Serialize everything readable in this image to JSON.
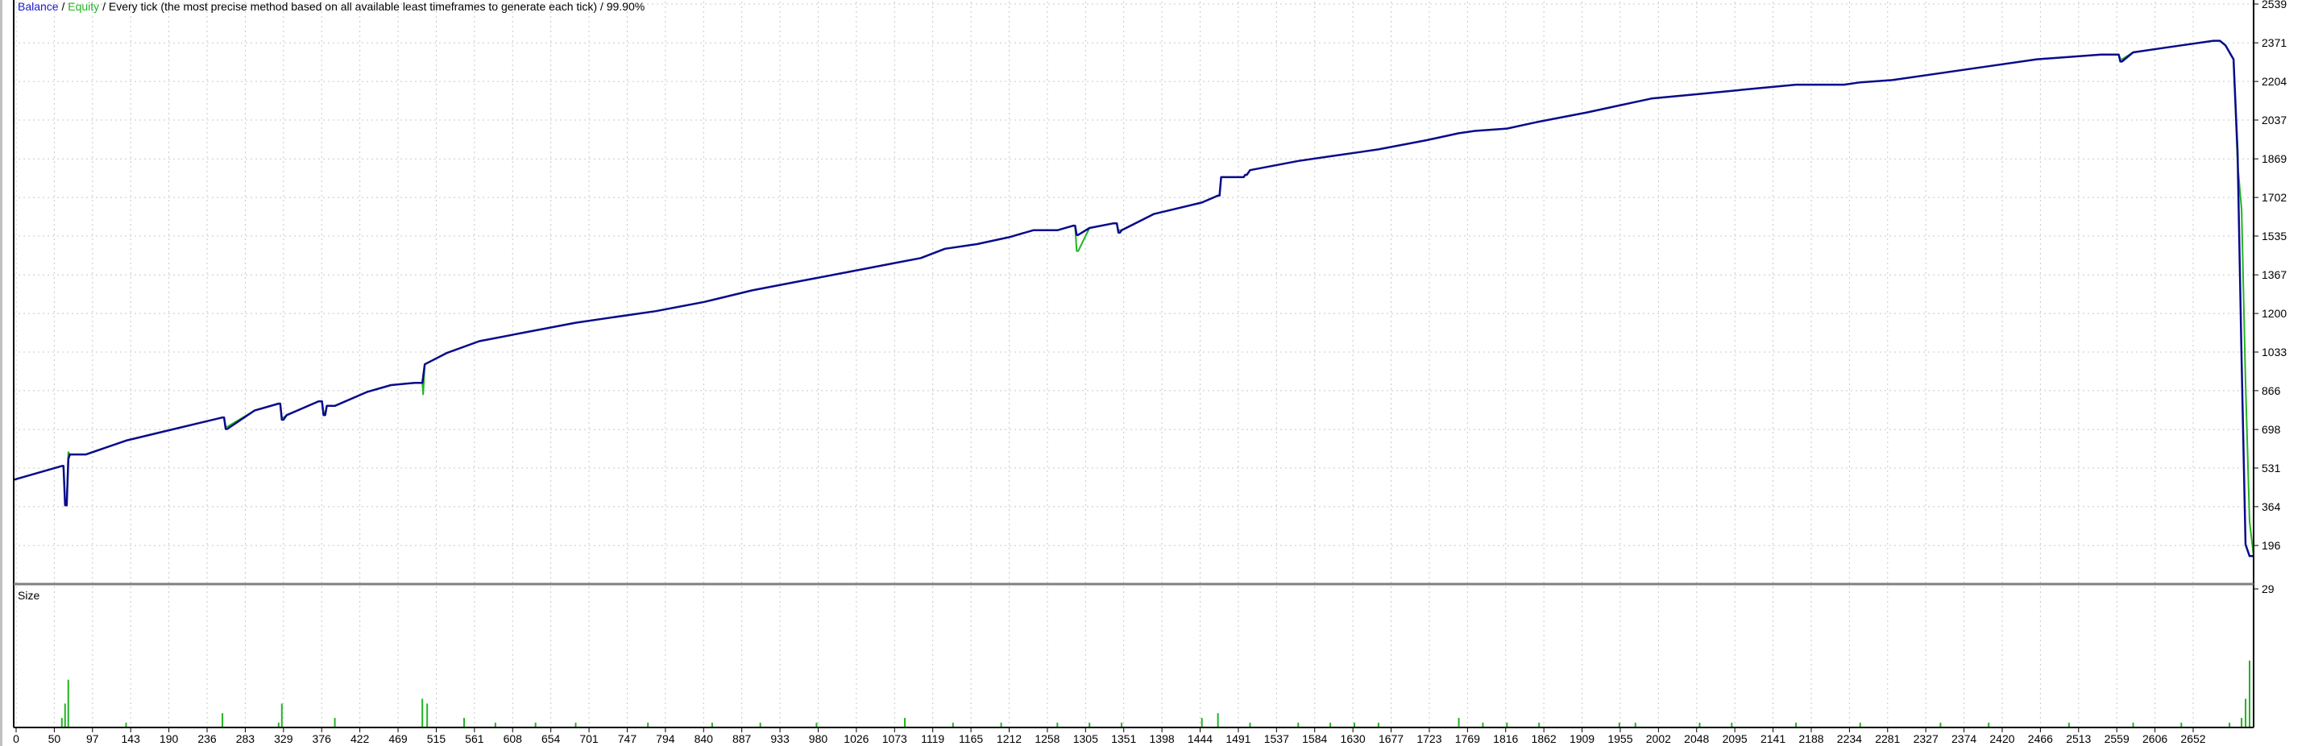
{
  "header": {
    "balance_label": "Balance",
    "sep1": " / ",
    "equity_label": "Equity",
    "sep2": " / ",
    "model_text": "Every tick (the most precise method based on all available least timeframes to generate each tick)",
    "sep3": " / ",
    "quality": "99.90%"
  },
  "colors": {
    "balance": "#0a0a8c",
    "equity": "#22b422",
    "size": "#22b422",
    "grid": "#c8c8c8",
    "axis": "#000000",
    "background": "#ffffff"
  },
  "chart_data": [
    {
      "type": "line",
      "title": "Balance / Equity",
      "subtitle": "Every tick (the most precise method based on all available least timeframes to generate each tick) / 99.90%",
      "xlabel": "",
      "ylabel": "",
      "x_ticks": [
        0,
        50,
        97,
        143,
        190,
        236,
        283,
        329,
        376,
        422,
        469,
        515,
        561,
        608,
        654,
        701,
        747,
        794,
        840,
        887,
        933,
        980,
        1026,
        1073,
        1119,
        1165,
        1212,
        1258,
        1305,
        1351,
        1398,
        1444,
        1491,
        1537,
        1584,
        1630,
        1677,
        1723,
        1769,
        1816,
        1862,
        1909,
        1955,
        2002,
        2048,
        2095,
        2141,
        2188,
        2234,
        2281,
        2327,
        2374,
        2420,
        2466,
        2513,
        2559,
        2606,
        2652
      ],
      "y_ticks": [
        196,
        364,
        531,
        698,
        866,
        1033,
        1200,
        1367,
        1535,
        1702,
        1869,
        2037,
        2204,
        2371,
        2539
      ],
      "xlim": [
        0,
        2790
      ],
      "ylim": [
        29,
        2539
      ],
      "grid": true,
      "series": [
        {
          "name": "Balance",
          "x": [
            0,
            60,
            62,
            64,
            66,
            68,
            70,
            90,
            140,
            200,
            260,
            262,
            264,
            266,
            300,
            330,
            332,
            334,
            336,
            340,
            380,
            384,
            386,
            388,
            390,
            400,
            440,
            470,
            500,
            509,
            512,
            540,
            580,
            640,
            700,
            740,
            800,
            860,
            920,
            980,
            1040,
            1100,
            1130,
            1160,
            1200,
            1240,
            1270,
            1300,
            1320,
            1322,
            1324,
            1326,
            1340,
            1370,
            1374,
            1376,
            1378,
            1380,
            1420,
            1480,
            1500,
            1502,
            1504,
            1530,
            1532,
            1534,
            1536,
            1540,
            1600,
            1640,
            1680,
            1700,
            1760,
            1800,
            1820,
            1860,
            1900,
            1960,
            2000,
            2040,
            2100,
            2160,
            2220,
            2280,
            2300,
            2340,
            2400,
            2460,
            2520,
            2600,
            2620,
            2622,
            2624,
            2626,
            2640,
            2700,
            2740,
            2748,
            2755,
            2760,
            2765,
            2770,
            2775,
            2780,
            2785,
            2790
          ],
          "y": [
            480,
            540,
            540,
            370,
            370,
            570,
            590,
            590,
            650,
            700,
            750,
            750,
            700,
            700,
            780,
            810,
            810,
            740,
            740,
            760,
            820,
            820,
            760,
            760,
            800,
            800,
            860,
            890,
            900,
            900,
            980,
            1030,
            1080,
            1120,
            1160,
            1180,
            1210,
            1250,
            1300,
            1340,
            1380,
            1420,
            1440,
            1480,
            1500,
            1530,
            1560,
            1560,
            1580,
            1580,
            1540,
            1540,
            1570,
            1590,
            1590,
            1550,
            1550,
            1560,
            1630,
            1680,
            1710,
            1710,
            1790,
            1790,
            1790,
            1800,
            1800,
            1820,
            1860,
            1880,
            1900,
            1910,
            1950,
            1980,
            1990,
            2000,
            2030,
            2070,
            2100,
            2130,
            2150,
            2170,
            2190,
            2190,
            2200,
            2210,
            2240,
            2270,
            2300,
            2320,
            2320,
            2320,
            2290,
            2290,
            2330,
            2360,
            2380,
            2380,
            2360,
            2330,
            2300,
            1900,
            1000,
            200,
            150,
            150
          ]
        },
        {
          "name": "Equity",
          "x": [
            0,
            60,
            62,
            64,
            66,
            68,
            70,
            90,
            140,
            200,
            260,
            262,
            264,
            266,
            300,
            330,
            332,
            334,
            336,
            340,
            380,
            384,
            386,
            388,
            390,
            400,
            440,
            470,
            500,
            509,
            510,
            512,
            540,
            580,
            640,
            700,
            740,
            800,
            860,
            920,
            980,
            1040,
            1100,
            1130,
            1160,
            1200,
            1240,
            1270,
            1300,
            1320,
            1322,
            1324,
            1326,
            1340,
            1370,
            1374,
            1376,
            1378,
            1380,
            1420,
            1480,
            1500,
            1502,
            1504,
            1530,
            1532,
            1534,
            1536,
            1540,
            1600,
            1640,
            1680,
            1700,
            1760,
            1800,
            1820,
            1860,
            1900,
            1960,
            2000,
            2040,
            2100,
            2160,
            2220,
            2280,
            2300,
            2340,
            2400,
            2460,
            2520,
            2600,
            2620,
            2622,
            2624,
            2626,
            2640,
            2700,
            2740,
            2748,
            2755,
            2760,
            2765,
            2770,
            2775,
            2780,
            2785,
            2790
          ],
          "y": [
            480,
            540,
            540,
            380,
            380,
            600,
            590,
            590,
            650,
            700,
            750,
            750,
            710,
            710,
            780,
            810,
            810,
            750,
            750,
            760,
            820,
            820,
            770,
            770,
            800,
            800,
            860,
            890,
            900,
            900,
            850,
            980,
            1030,
            1080,
            1120,
            1160,
            1180,
            1210,
            1250,
            1300,
            1340,
            1380,
            1420,
            1440,
            1480,
            1500,
            1530,
            1560,
            1560,
            1580,
            1580,
            1470,
            1470,
            1570,
            1590,
            1590,
            1560,
            1560,
            1560,
            1630,
            1680,
            1710,
            1710,
            1790,
            1790,
            1790,
            1800,
            1800,
            1820,
            1860,
            1880,
            1900,
            1910,
            1950,
            1980,
            1990,
            2000,
            2030,
            2070,
            2100,
            2130,
            2150,
            2170,
            2190,
            2190,
            2200,
            2210,
            2240,
            2270,
            2300,
            2320,
            2320,
            2320,
            2300,
            2300,
            2330,
            2360,
            2380,
            2380,
            2360,
            2330,
            2300,
            1850,
            1650,
            900,
            300,
            150
          ]
        }
      ]
    },
    {
      "type": "bar",
      "title": "Size",
      "y_ticks": [
        29
      ],
      "ylim": [
        0,
        29
      ],
      "xlim": [
        0,
        2790
      ],
      "x": [
        60,
        64,
        68,
        140,
        260,
        330,
        334,
        400,
        509,
        515,
        561,
        600,
        650,
        700,
        790,
        870,
        930,
        1000,
        1110,
        1170,
        1230,
        1300,
        1340,
        1380,
        1480,
        1500,
        1540,
        1600,
        1640,
        1670,
        1700,
        1800,
        1830,
        1860,
        1900,
        2000,
        2020,
        2100,
        2140,
        2220,
        2300,
        2400,
        2460,
        2560,
        2640,
        2700,
        2760,
        2775,
        2780,
        2785,
        2790
      ],
      "values": [
        2,
        5,
        10,
        1,
        3,
        1,
        5,
        2,
        6,
        5,
        2,
        1,
        1,
        1,
        1,
        1,
        1,
        1,
        2,
        1,
        1,
        1,
        1,
        1,
        2,
        3,
        1,
        1,
        1,
        1,
        1,
        2,
        1,
        1,
        1,
        1,
        1,
        1,
        1,
        1,
        1,
        1,
        1,
        1,
        1,
        1,
        1,
        2,
        6,
        14,
        29
      ]
    }
  ]
}
